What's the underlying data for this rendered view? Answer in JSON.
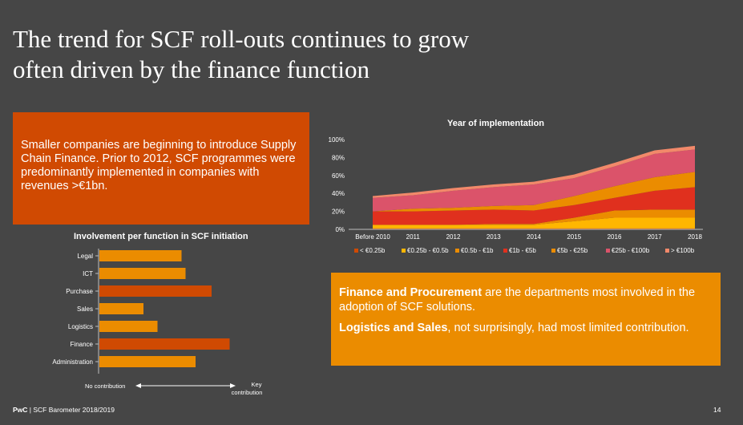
{
  "title": {
    "line1": "The trend for SCF roll-outs continues to grow",
    "line2": "often driven by the finance function"
  },
  "left_box": {
    "text": "Smaller companies are beginning to introduce Supply Chain Finance. Prior to 2012, SCF programmes were predominantly implemented in companies with revenues >€1bn."
  },
  "right_box": {
    "p1_bold": "Finance and Procurement",
    "p1_rest": " are the departments most involved in the adoption of SCF solutions.",
    "p2_bold": "Logistics and Sales",
    "p2_rest": ", not surprisingly, had most limited contribution."
  },
  "footer": {
    "brand": "PwC",
    "text": " | SCF Barometer 2018/2019",
    "page": "14"
  },
  "colors": {
    "bg": "#464646",
    "orange_dark": "#d04a02",
    "orange": "#eb8c00",
    "red": "#e0301e",
    "yellow": "#ffb600",
    "rose": "#db536a",
    "salmon": "#f2896a"
  },
  "chart_data": [
    {
      "type": "area",
      "stacked": true,
      "title": "Year of implementation",
      "categories": [
        "Before 2010",
        "2011",
        "2012",
        "2013",
        "2014",
        "2015",
        "2016",
        "2017",
        "2018"
      ],
      "y_ticks": [
        "0%",
        "20%",
        "40%",
        "60%",
        "80%",
        "100%"
      ],
      "ylim": [
        0,
        100
      ],
      "legend_position": "bottom",
      "series": [
        {
          "name": "< €0.25b",
          "color": "#d04a02",
          "values": [
            1,
            1,
            1,
            1,
            1,
            1,
            1,
            1,
            1
          ]
        },
        {
          "name": "€0.25b - €0.5b",
          "color": "#ffb600",
          "values": [
            4,
            4,
            4,
            4,
            4,
            8,
            12,
            12,
            12
          ]
        },
        {
          "name": "€0.5b - €1b",
          "color": "#eb8c00",
          "values": [
            0,
            0,
            0,
            1,
            1,
            4,
            8,
            9,
            9
          ]
        },
        {
          "name": "€1b - €5b",
          "color": "#e0301e",
          "values": [
            15,
            15,
            16,
            16,
            15,
            14,
            14,
            21,
            25
          ]
        },
        {
          "name": "€5b - €25b",
          "color": "#eb8c00",
          "values": [
            0,
            3,
            3,
            4,
            6,
            10,
            13,
            15,
            17
          ]
        },
        {
          "name": "€25b - €100b",
          "color": "#db536a",
          "values": [
            15,
            15,
            19,
            21,
            23,
            20,
            22,
            26,
            25
          ]
        },
        {
          "name": "> €100b",
          "color": "#f2896a",
          "values": [
            2,
            3,
            3,
            3,
            3,
            4,
            4,
            4,
            4
          ]
        }
      ]
    },
    {
      "type": "bar",
      "orientation": "horizontal",
      "title": "Involvement per function in SCF initiation",
      "categories": [
        "Legal",
        "ICT",
        "Purchase",
        "Sales",
        "Logistics",
        "Finance",
        "Administration"
      ],
      "values": [
        4.1,
        4.3,
        5.6,
        2.2,
        2.9,
        6.5,
        4.8
      ],
      "highlight": [
        false,
        false,
        true,
        false,
        false,
        true,
        false
      ],
      "colors": {
        "normal": "#eb8c00",
        "highlight": "#d04a02"
      },
      "xlim": [
        0,
        8
      ],
      "x_axis_left_label": "No contribution",
      "x_axis_right_label_1": "Key",
      "x_axis_right_label_2": "contribution"
    }
  ]
}
